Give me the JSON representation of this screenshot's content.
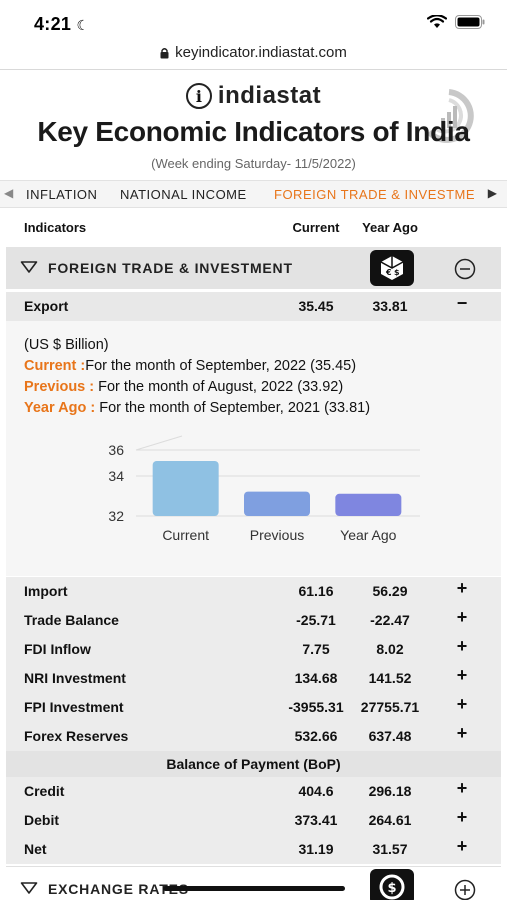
{
  "status": {
    "time": "4:21"
  },
  "browser": {
    "url": "keyindicator.indiastat.com"
  },
  "header": {
    "brand": "indiastat",
    "title": "Key Economic Indicators of India",
    "subtitle": "(Week ending Saturday- 11/5/2022)"
  },
  "tabs": [
    {
      "label": "INFLATION"
    },
    {
      "label": "NATIONAL INCOME"
    },
    {
      "label": "FOREIGN TRADE & INVESTME"
    }
  ],
  "table_header": {
    "indicators": "Indicators",
    "current": "Current",
    "year_ago": "Year Ago"
  },
  "section": {
    "title": "FOREIGN TRADE & INVESTMENT"
  },
  "export": {
    "name": "Export",
    "current": "35.45",
    "year_ago": "33.81",
    "toggle": "−",
    "unit": "(US $ Billion)",
    "current_label": "Current :",
    "current_text": "For the month of September, 2022 (35.45)",
    "previous_label": "Previous :",
    "previous_text": " For the month of August, 2022 (33.92)",
    "yearago_label": "Year Ago :",
    "yearago_text": " For the month of September, 2021 (33.81)"
  },
  "chart_data": {
    "type": "bar",
    "categories": [
      "Current",
      "Previous",
      "Year Ago"
    ],
    "values": [
      35.45,
      33.92,
      33.81
    ],
    "y_ticks": [
      "36",
      "34",
      "32"
    ],
    "ylim": [
      32,
      36
    ],
    "title": "",
    "xlabel": "",
    "ylabel": "",
    "colors": [
      "#8fc1e3",
      "#7f9fe0",
      "#7f86e0"
    ]
  },
  "rows": [
    {
      "name": "Import",
      "current": "61.16",
      "year_ago": "56.29",
      "toggle": "+"
    },
    {
      "name": "Trade Balance",
      "current": "-25.71",
      "year_ago": "-22.47",
      "toggle": "+"
    },
    {
      "name": "FDI Inflow",
      "current": "7.75",
      "year_ago": "8.02",
      "toggle": "+"
    },
    {
      "name": "NRI Investment",
      "current": "134.68",
      "year_ago": "141.52",
      "toggle": "+"
    },
    {
      "name": "FPI Investment",
      "current": "-3955.31",
      "year_ago": "27755.71",
      "toggle": "+"
    },
    {
      "name": "Forex Reserves",
      "current": "532.66",
      "year_ago": "637.48",
      "toggle": "+"
    }
  ],
  "bop": {
    "title": "Balance of Payment (BoP)",
    "rows": [
      {
        "name": "Credit",
        "current": "404.6",
        "year_ago": "296.18",
        "toggle": "+"
      },
      {
        "name": "Debit",
        "current": "373.41",
        "year_ago": "264.61",
        "toggle": "+"
      },
      {
        "name": "Net",
        "current": "31.19",
        "year_ago": "31.57",
        "toggle": "+"
      }
    ]
  },
  "next_section": {
    "title": "EXCHANGE RATES"
  },
  "colors": {
    "accent": "#e8751a",
    "section_bg": "#e3e3e3"
  }
}
